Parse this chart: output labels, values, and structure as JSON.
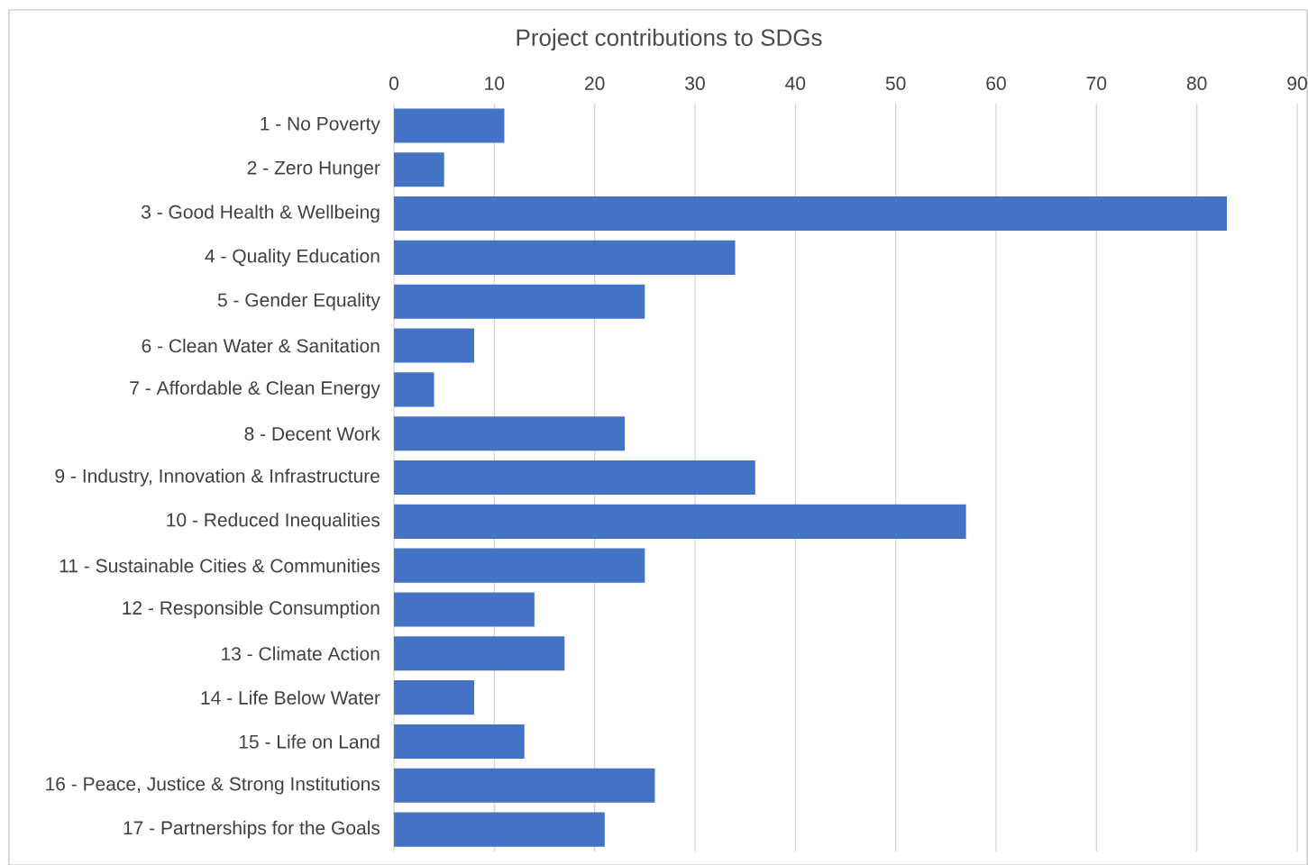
{
  "chart_data": {
    "type": "bar",
    "orientation": "horizontal",
    "title": "Project contributions to SDGs",
    "categories": [
      "1 - No Poverty",
      "2 - Zero Hunger",
      "3 - Good Health & Wellbeing",
      "4 - Quality Education",
      "5 - Gender Equality",
      "6 - Clean Water & Sanitation",
      "7 - Affordable & Clean Energy",
      "8 - Decent Work",
      "9 - Industry, Innovation & Infrastructure",
      "10 - Reduced Inequalities",
      "11 - Sustainable Cities & Communities",
      "12 - Responsible Consumption",
      "13 - Climate Action",
      "14 - Life Below Water",
      "15 - Life on Land",
      "16 - Peace, Justice & Strong Institutions",
      "17 - Partnerships for the Goals"
    ],
    "values": [
      11,
      5,
      83,
      34,
      25,
      8,
      4,
      23,
      36,
      57,
      25,
      14,
      17,
      8,
      13,
      26,
      21
    ],
    "color": "#4472c4",
    "xlim": [
      0,
      90
    ],
    "xticks": [
      0,
      10,
      20,
      30,
      40,
      50,
      60,
      70,
      80,
      90
    ],
    "grid": "x"
  }
}
